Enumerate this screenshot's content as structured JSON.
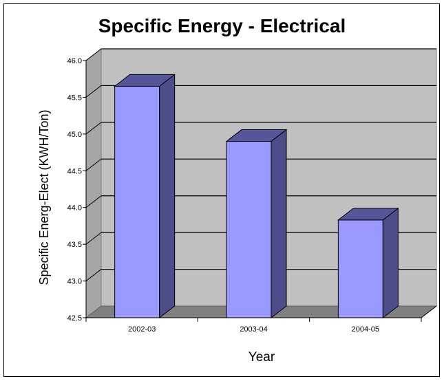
{
  "chart_data": {
    "type": "bar",
    "title": "Specific Energy - Electrical",
    "xlabel": "Year",
    "ylabel": "Specific Energ-Elect (KWH/Ton)",
    "categories": [
      "2002-03",
      "2003-04",
      "2004-05"
    ],
    "values": [
      45.65,
      44.9,
      43.83
    ],
    "ylim": [
      42.5,
      46.0
    ],
    "yticks": [
      "42.5",
      "43.0",
      "43.5",
      "44.0",
      "44.5",
      "45.0",
      "45.5",
      "46.0"
    ],
    "grid": true,
    "legend": "none",
    "colors": {
      "bar_front": "#9999ff",
      "bar_side": "#4d4d8a",
      "bar_top": "#55559a",
      "wall": "#c0c0c0",
      "floor": "#808080"
    }
  }
}
